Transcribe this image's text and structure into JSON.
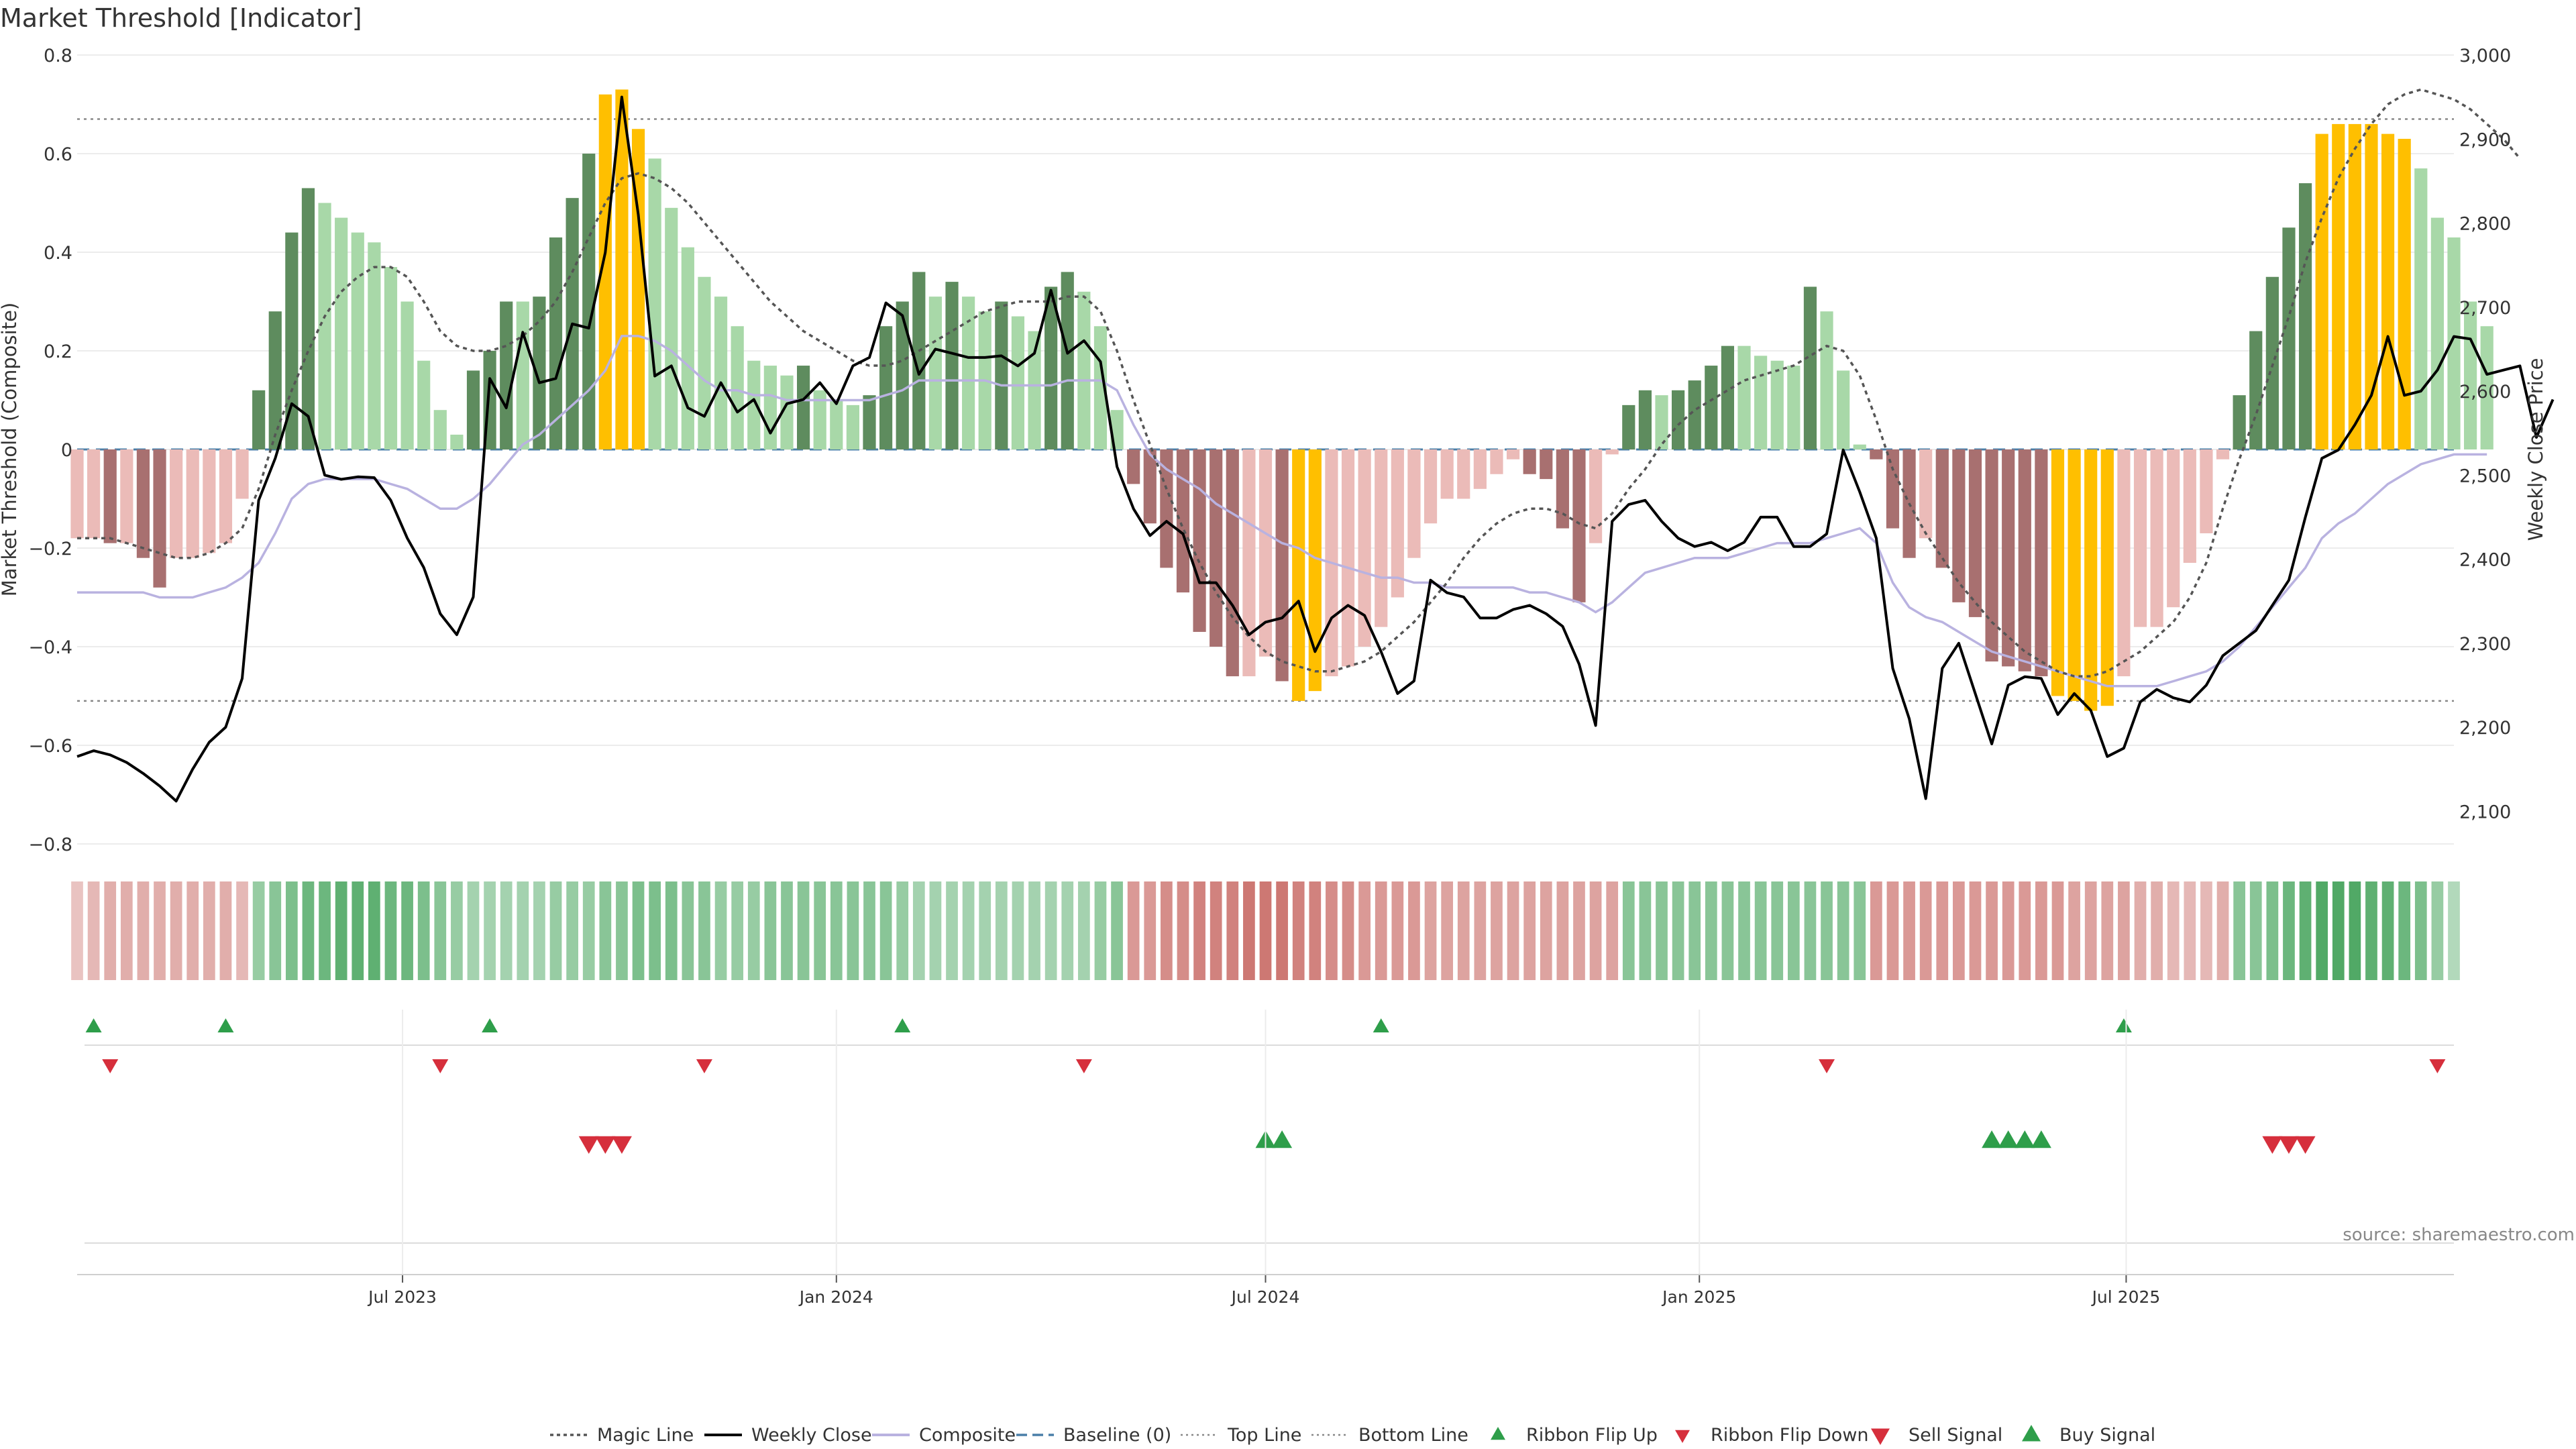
{
  "title": "Market Threshold [Indicator]",
  "source": "source: sharemaestro.com",
  "colors": {
    "bull_strong": "#5e8c5e",
    "bull_light": "#a8d8a8",
    "bear_strong": "#a87070",
    "bear_light": "#ebbbb8",
    "extreme": "#ffbf00",
    "weekly": "#000000",
    "composite": "#b9b2e0",
    "magic": "#555555",
    "baseline": "#4a7fa8",
    "threshold": "#888888",
    "buy": "#2e9e4a",
    "sell": "#d62f3c"
  },
  "chart_data": {
    "type": "bar",
    "title": "Market Threshold [Indicator]",
    "y_left": {
      "label": "Market Threshold (Composite)",
      "ylim": [
        -0.85,
        0.8
      ],
      "ticks": [
        0.8,
        0.6,
        0.4,
        0.2,
        0,
        -0.2,
        -0.4,
        -0.6,
        -0.8
      ],
      "tick_labels": [
        "0.8",
        "0.6",
        "0.4",
        "0.2",
        "0",
        "−0.2",
        "−0.4",
        "−0.6",
        "−0.8"
      ]
    },
    "y_right": {
      "label": "Weekly Close Price",
      "ylim": [
        2035,
        3000
      ],
      "ticks": [
        3000,
        2900,
        2800,
        2700,
        2600,
        2500,
        2400,
        2300,
        2200,
        2100
      ],
      "tick_labels": [
        "3,000",
        "2,900",
        "2,800",
        "2,700",
        "2,600",
        "2,500",
        "2,400",
        "2,300",
        "2,200",
        "2,100"
      ]
    },
    "x_ticks": [
      {
        "date": "2023-07-01",
        "label": "Jul 2023"
      },
      {
        "date": "2024-01-01",
        "label": "Jan 2024"
      },
      {
        "date": "2024-07-01",
        "label": "Jul 2024"
      },
      {
        "date": "2025-01-01",
        "label": "Jan 2025"
      },
      {
        "date": "2025-07-01",
        "label": "Jul 2025"
      }
    ],
    "top_line": 0.67,
    "bottom_line": -0.51,
    "start_date": "2023-02-13",
    "weeks": 145,
    "histogram": [
      -0.18,
      -0.18,
      -0.19,
      -0.19,
      -0.22,
      -0.28,
      -0.22,
      -0.22,
      -0.21,
      -0.19,
      -0.1,
      0.12,
      0.28,
      0.44,
      0.53,
      0.5,
      0.47,
      0.44,
      0.42,
      0.37,
      0.3,
      0.18,
      0.08,
      0.03,
      0.16,
      0.2,
      0.3,
      0.3,
      0.31,
      0.43,
      0.51,
      0.6,
      0.72,
      0.73,
      0.65,
      0.59,
      0.49,
      0.41,
      0.35,
      0.31,
      0.25,
      0.18,
      0.17,
      0.15,
      0.17,
      0.12,
      0.1,
      0.09,
      0.11,
      0.25,
      0.3,
      0.36,
      0.31,
      0.34,
      0.31,
      0.28,
      0.3,
      0.27,
      0.24,
      0.33,
      0.36,
      0.32,
      0.25,
      0.08,
      -0.07,
      -0.15,
      -0.24,
      -0.29,
      -0.37,
      -0.4,
      -0.46,
      -0.46,
      -0.42,
      -0.47,
      -0.51,
      -0.49,
      -0.46,
      -0.44,
      -0.4,
      -0.36,
      -0.3,
      -0.22,
      -0.15,
      -0.1,
      -0.1,
      -0.08,
      -0.05,
      -0.02,
      -0.05,
      -0.06,
      -0.16,
      -0.31,
      -0.19,
      -0.01,
      0.09,
      0.12,
      0.11,
      0.12,
      0.14,
      0.17,
      0.21,
      0.21,
      0.19,
      0.18,
      0.17,
      0.33,
      0.28,
      0.16,
      0.01,
      -0.02,
      -0.16,
      -0.22,
      -0.18,
      -0.24,
      -0.31,
      -0.34,
      -0.43,
      -0.44,
      -0.45,
      -0.46,
      -0.5,
      -0.51,
      -0.53,
      -0.52,
      -0.46,
      -0.36,
      -0.36,
      -0.32,
      -0.23,
      -0.17,
      -0.02,
      0.11,
      0.24,
      0.35,
      0.45,
      0.54,
      0.64,
      0.66,
      0.66,
      0.66,
      0.64,
      0.63,
      0.57,
      0.47,
      0.43,
      0.3,
      0.25
    ],
    "weekly_close": [
      2165,
      2172,
      2167,
      2158,
      2145,
      2130,
      2112,
      2150,
      2182,
      2200,
      2258,
      2470,
      2520,
      2585,
      2570,
      2500,
      2495,
      2498,
      2497,
      2470,
      2425,
      2390,
      2335,
      2310,
      2355,
      2615,
      2580,
      2670,
      2610,
      2615,
      2680,
      2675,
      2765,
      2950,
      2810,
      2618,
      2630,
      2580,
      2570,
      2610,
      2575,
      2590,
      2550,
      2585,
      2590,
      2610,
      2585,
      2630,
      2640,
      2705,
      2690,
      2620,
      2650,
      2645,
      2640,
      2640,
      2642,
      2630,
      2645,
      2720,
      2645,
      2660,
      2635,
      2510,
      2460,
      2428,
      2445,
      2430,
      2372,
      2372,
      2345,
      2310,
      2325,
      2330,
      2350,
      2290,
      2330,
      2345,
      2333,
      2290,
      2240,
      2255,
      2375,
      2360,
      2355,
      2330,
      2330,
      2340,
      2345,
      2335,
      2320,
      2275,
      2202,
      2445,
      2465,
      2470,
      2445,
      2425,
      2415,
      2420,
      2410,
      2420,
      2450,
      2450,
      2415,
      2415,
      2430,
      2530,
      2480,
      2425,
      2270,
      2210,
      2115,
      2270,
      2300,
      2240,
      2180,
      2250,
      2260,
      2258,
      2215,
      2240,
      2220,
      2165,
      2175,
      2230,
      2245,
      2235,
      2230,
      2250,
      2285,
      2300,
      2315,
      2345,
      2375,
      2450,
      2520,
      2530,
      2560,
      2595,
      2665,
      2595,
      2600,
      2625,
      2665,
      2662,
      2620,
      2625,
      2630,
      2545,
      2590
    ],
    "composite": [
      -0.29,
      -0.29,
      -0.29,
      -0.29,
      -0.29,
      -0.3,
      -0.3,
      -0.3,
      -0.29,
      -0.28,
      -0.26,
      -0.23,
      -0.17,
      -0.1,
      -0.07,
      -0.06,
      -0.06,
      -0.06,
      -0.06,
      -0.07,
      -0.08,
      -0.1,
      -0.12,
      -0.12,
      -0.1,
      -0.07,
      -0.03,
      0.01,
      0.03,
      0.06,
      0.09,
      0.12,
      0.16,
      0.23,
      0.23,
      0.22,
      0.2,
      0.17,
      0.14,
      0.12,
      0.12,
      0.11,
      0.11,
      0.1,
      0.1,
      0.1,
      0.1,
      0.1,
      0.1,
      0.11,
      0.12,
      0.14,
      0.14,
      0.14,
      0.14,
      0.14,
      0.13,
      0.13,
      0.13,
      0.13,
      0.14,
      0.14,
      0.14,
      0.12,
      0.05,
      -0.01,
      -0.04,
      -0.06,
      -0.08,
      -0.11,
      -0.13,
      -0.15,
      -0.17,
      -0.19,
      -0.2,
      -0.22,
      -0.23,
      -0.24,
      -0.25,
      -0.26,
      -0.26,
      -0.27,
      -0.27,
      -0.28,
      -0.28,
      -0.28,
      -0.28,
      -0.28,
      -0.29,
      -0.29,
      -0.3,
      -0.31,
      -0.33,
      -0.31,
      -0.28,
      -0.25,
      -0.24,
      -0.23,
      -0.22,
      -0.22,
      -0.22,
      -0.21,
      -0.2,
      -0.19,
      -0.19,
      -0.19,
      -0.18,
      -0.17,
      -0.16,
      -0.19,
      -0.27,
      -0.32,
      -0.34,
      -0.35,
      -0.37,
      -0.39,
      -0.41,
      -0.42,
      -0.43,
      -0.44,
      -0.45,
      -0.46,
      -0.47,
      -0.48,
      -0.48,
      -0.48,
      -0.48,
      -0.47,
      -0.46,
      -0.45,
      -0.43,
      -0.4,
      -0.36,
      -0.32,
      -0.28,
      -0.24,
      -0.18,
      -0.15,
      -0.13,
      -0.1,
      -0.07,
      -0.05,
      -0.03,
      -0.02,
      -0.01,
      -0.01,
      -0.01
    ],
    "magic_line": [
      -0.18,
      -0.18,
      -0.18,
      -0.19,
      -0.2,
      -0.21,
      -0.22,
      -0.22,
      -0.21,
      -0.19,
      -0.16,
      -0.08,
      0.03,
      0.12,
      0.2,
      0.27,
      0.32,
      0.35,
      0.37,
      0.37,
      0.35,
      0.3,
      0.24,
      0.21,
      0.2,
      0.2,
      0.21,
      0.23,
      0.26,
      0.3,
      0.36,
      0.43,
      0.5,
      0.55,
      0.56,
      0.55,
      0.53,
      0.5,
      0.46,
      0.42,
      0.38,
      0.34,
      0.3,
      0.27,
      0.24,
      0.22,
      0.2,
      0.18,
      0.17,
      0.17,
      0.18,
      0.2,
      0.22,
      0.24,
      0.26,
      0.28,
      0.29,
      0.3,
      0.3,
      0.3,
      0.31,
      0.31,
      0.28,
      0.2,
      0.1,
      0.01,
      -0.08,
      -0.16,
      -0.23,
      -0.29,
      -0.34,
      -0.38,
      -0.41,
      -0.43,
      -0.44,
      -0.45,
      -0.45,
      -0.44,
      -0.43,
      -0.41,
      -0.38,
      -0.35,
      -0.31,
      -0.27,
      -0.22,
      -0.18,
      -0.15,
      -0.13,
      -0.12,
      -0.12,
      -0.13,
      -0.15,
      -0.16,
      -0.13,
      -0.08,
      -0.04,
      0.01,
      0.05,
      0.08,
      0.1,
      0.12,
      0.14,
      0.15,
      0.16,
      0.17,
      0.19,
      0.21,
      0.2,
      0.15,
      0.06,
      -0.04,
      -0.11,
      -0.17,
      -0.22,
      -0.27,
      -0.31,
      -0.35,
      -0.38,
      -0.41,
      -0.43,
      -0.45,
      -0.46,
      -0.46,
      -0.45,
      -0.43,
      -0.41,
      -0.38,
      -0.35,
      -0.3,
      -0.23,
      -0.12,
      -0.02,
      0.07,
      0.17,
      0.27,
      0.38,
      0.47,
      0.55,
      0.61,
      0.66,
      0.7,
      0.72,
      0.73,
      0.72,
      0.71,
      0.69,
      0.66,
      0.63,
      0.59
    ],
    "ribbon_strength": [
      0.3,
      0.4,
      0.5,
      0.5,
      0.5,
      0.5,
      0.5,
      0.5,
      0.5,
      0.5,
      0.4,
      0.5,
      0.6,
      0.7,
      0.8,
      0.8,
      0.9,
      0.9,
      0.9,
      0.8,
      0.8,
      0.7,
      0.6,
      0.5,
      0.4,
      0.4,
      0.4,
      0.4,
      0.4,
      0.5,
      0.5,
      0.5,
      0.6,
      0.6,
      0.7,
      0.7,
      0.7,
      0.6,
      0.6,
      0.5,
      0.5,
      0.5,
      0.6,
      0.6,
      0.6,
      0.6,
      0.6,
      0.6,
      0.6,
      0.6,
      0.5,
      0.4,
      0.4,
      0.4,
      0.4,
      0.4,
      0.4,
      0.4,
      0.4,
      0.4,
      0.4,
      0.4,
      0.5,
      0.6,
      0.7,
      0.7,
      0.8,
      0.8,
      0.9,
      0.9,
      0.9,
      1.0,
      1.0,
      1.0,
      0.9,
      0.9,
      0.8,
      0.8,
      0.7,
      0.7,
      0.7,
      0.7,
      0.6,
      0.6,
      0.6,
      0.6,
      0.6,
      0.6,
      0.6,
      0.6,
      0.6,
      0.6,
      0.6,
      0.6,
      0.6,
      0.6,
      0.6,
      0.6,
      0.6,
      0.6,
      0.6,
      0.6,
      0.6,
      0.6,
      0.6,
      0.6,
      0.6,
      0.6,
      0.6,
      0.7,
      0.7,
      0.7,
      0.7,
      0.7,
      0.7,
      0.7,
      0.7,
      0.7,
      0.7,
      0.7,
      0.7,
      0.6,
      0.6,
      0.6,
      0.6,
      0.5,
      0.5,
      0.4,
      0.4,
      0.4,
      0.5,
      0.6,
      0.6,
      0.7,
      0.8,
      0.9,
      1.0,
      1.0,
      1.0,
      0.9,
      0.9,
      0.8,
      0.7,
      0.5,
      0.3
    ],
    "ribbon_flip_up": [
      1,
      9,
      25,
      50,
      79,
      124
    ],
    "ribbon_flip_down": [
      2,
      22,
      38,
      61,
      106,
      143
    ],
    "sell_signal": [
      31,
      32,
      33,
      133,
      134,
      135
    ],
    "buy_signal": [
      72,
      73,
      116,
      117,
      118,
      119
    ]
  },
  "legend": [
    {
      "label": "Magic Line",
      "type": "dotted-line"
    },
    {
      "label": "Weekly Close",
      "type": "solid-line"
    },
    {
      "label": "Composite",
      "type": "composite-line"
    },
    {
      "label": "Baseline (0)",
      "type": "dashed-line"
    },
    {
      "label": "Top Line",
      "type": "fine-dotted-line"
    },
    {
      "label": "Bottom Line",
      "type": "fine-dotted-line"
    },
    {
      "label": "Ribbon Flip Up",
      "type": "small-up"
    },
    {
      "label": "Ribbon Flip Down",
      "type": "small-down"
    },
    {
      "label": "Sell Signal",
      "type": "big-down"
    },
    {
      "label": "Buy Signal",
      "type": "big-up"
    }
  ]
}
